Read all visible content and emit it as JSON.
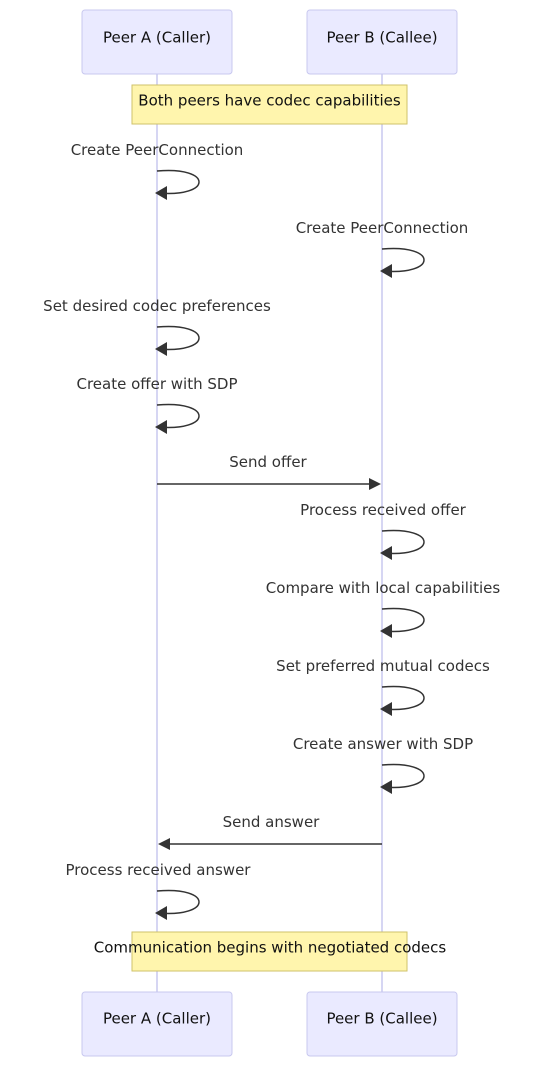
{
  "participants": [
    {
      "id": "A",
      "label": "Peer A (Caller)"
    },
    {
      "id": "B",
      "label": "Peer B (Callee)"
    }
  ],
  "steps": [
    {
      "kind": "note",
      "text": "Both peers have codec capabilities"
    },
    {
      "kind": "self",
      "on": "A",
      "text": "Create PeerConnection"
    },
    {
      "kind": "self",
      "on": "B",
      "text": "Create PeerConnection"
    },
    {
      "kind": "self",
      "on": "A",
      "text": "Set desired codec preferences"
    },
    {
      "kind": "self",
      "on": "A",
      "text": "Create offer with SDP"
    },
    {
      "kind": "msg",
      "from": "A",
      "to": "B",
      "text": "Send offer"
    },
    {
      "kind": "self",
      "on": "B",
      "text": "Process received offer"
    },
    {
      "kind": "self",
      "on": "B",
      "text": "Compare with local capabilities"
    },
    {
      "kind": "self",
      "on": "B",
      "text": "Set preferred mutual codecs"
    },
    {
      "kind": "self",
      "on": "B",
      "text": "Create answer with SDP"
    },
    {
      "kind": "msg",
      "from": "B",
      "to": "A",
      "text": "Send answer"
    },
    {
      "kind": "self",
      "on": "A",
      "text": "Process received answer"
    },
    {
      "kind": "note",
      "text": "Communication begins with negotiated codecs"
    }
  ],
  "colors": {
    "actor_fill": "#eaeaff",
    "actor_border": "#c8c8ef",
    "note_fill": "#fff5ad",
    "note_border": "#cfc26a",
    "line": "#333333"
  }
}
